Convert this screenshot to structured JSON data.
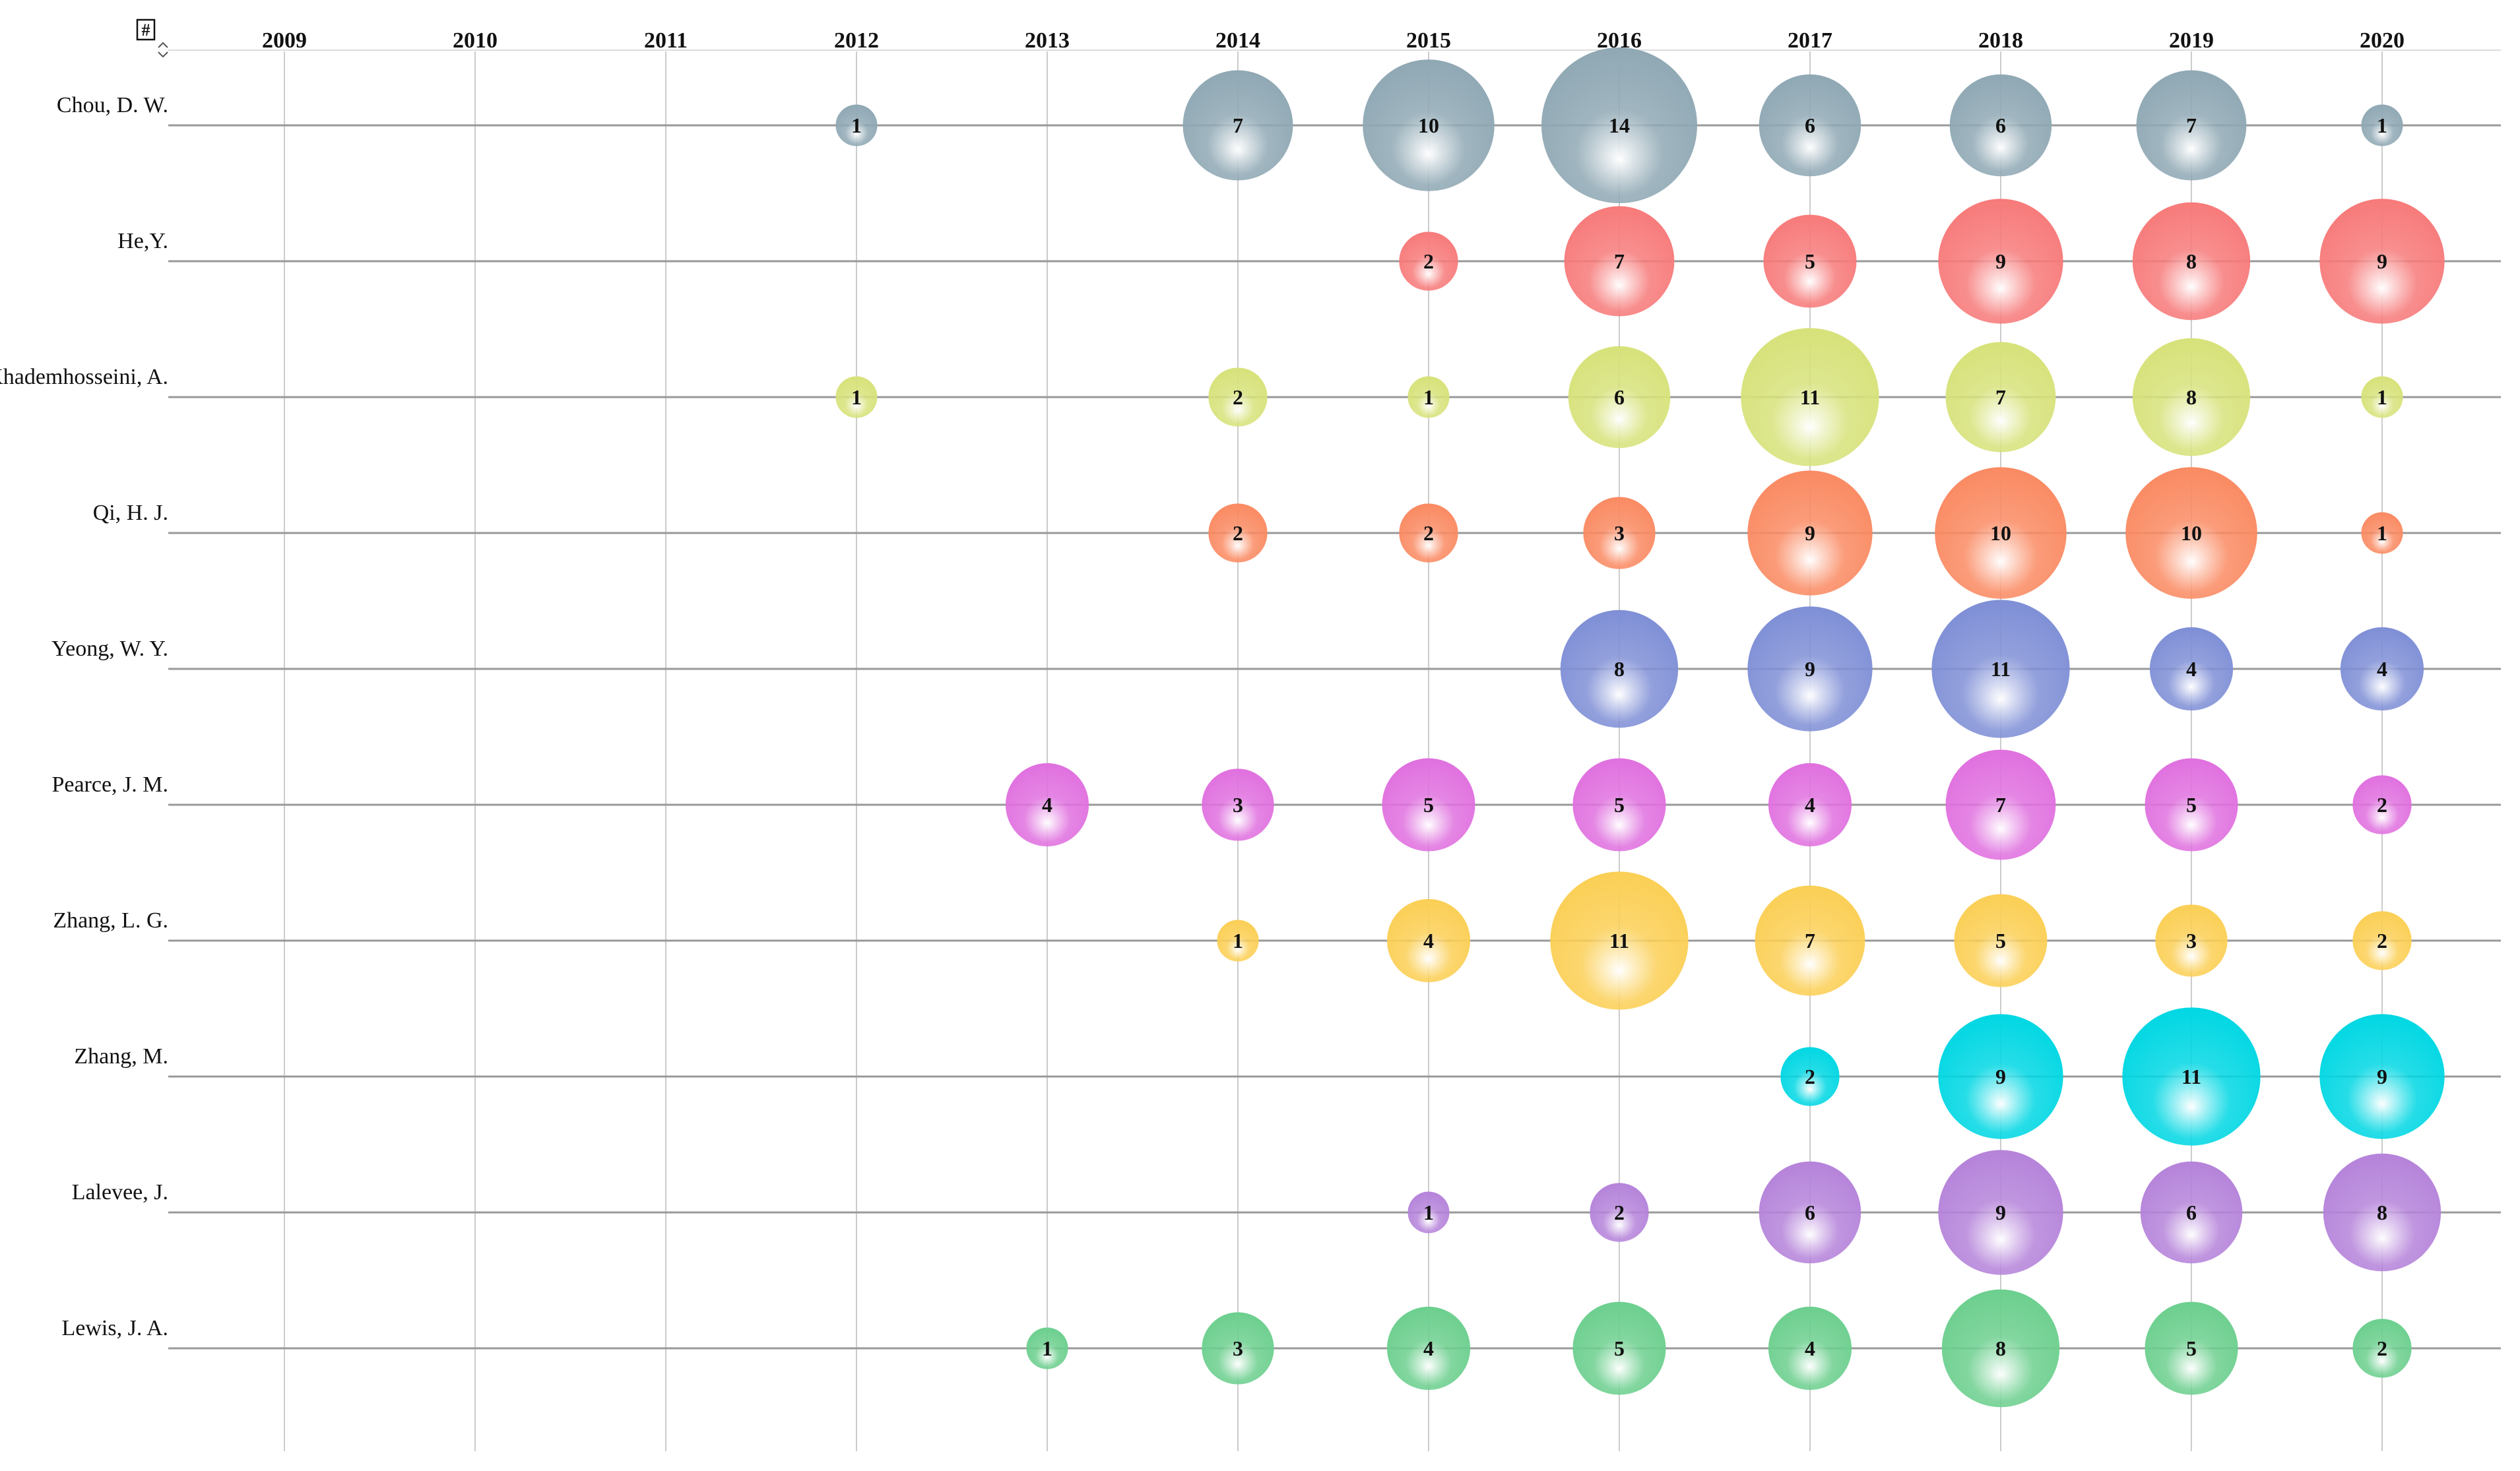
{
  "header": {
    "sort_icon_label": "#"
  },
  "chart_data": {
    "type": "bubble",
    "title": "",
    "x": [
      2009,
      2010,
      2011,
      2012,
      2013,
      2014,
      2015,
      2016,
      2017,
      2018,
      2019,
      2020
    ],
    "x_labels": [
      "2009",
      "2010",
      "2011",
      "2012",
      "2013",
      "2014",
      "2015",
      "2016",
      "2017",
      "2018",
      "2019",
      "2020"
    ],
    "series": [
      {
        "name": "Chou, D. W.",
        "color": "#8fa8b4",
        "values": [
          null,
          null,
          null,
          1,
          null,
          7,
          10,
          14,
          6,
          6,
          7,
          1
        ]
      },
      {
        "name": "He,Y.",
        "color": "#f77a7a",
        "values": [
          null,
          null,
          null,
          null,
          null,
          null,
          2,
          7,
          5,
          9,
          8,
          9
        ]
      },
      {
        "name": "Khademhosseini, A.",
        "color": "#d7e27a",
        "values": [
          null,
          null,
          null,
          1,
          null,
          2,
          1,
          6,
          11,
          7,
          8,
          1
        ]
      },
      {
        "name": "Qi, H. J.",
        "color": "#fa8a62",
        "values": [
          null,
          null,
          null,
          null,
          null,
          2,
          2,
          3,
          9,
          10,
          10,
          1
        ]
      },
      {
        "name": "Yeong, W. Y.",
        "color": "#7f8fd6",
        "values": [
          null,
          null,
          null,
          null,
          null,
          null,
          null,
          8,
          9,
          11,
          4,
          4
        ]
      },
      {
        "name": "Pearce, J. M.",
        "color": "#e070df",
        "values": [
          null,
          null,
          null,
          null,
          4,
          3,
          5,
          5,
          4,
          7,
          5,
          2
        ]
      },
      {
        "name": "Zhang, L. G.",
        "color": "#fbcf55",
        "values": [
          null,
          null,
          null,
          null,
          null,
          1,
          4,
          11,
          7,
          5,
          3,
          2
        ]
      },
      {
        "name": "Zhang, M.",
        "color": "#00d7e3",
        "values": [
          null,
          null,
          null,
          null,
          null,
          null,
          null,
          null,
          2,
          9,
          11,
          9
        ]
      },
      {
        "name": "Lalevee, J.",
        "color": "#b583da",
        "values": [
          null,
          null,
          null,
          null,
          null,
          null,
          1,
          2,
          6,
          9,
          6,
          8
        ]
      },
      {
        "name": "Lewis, J. A.",
        "color": "#6ccf8e",
        "values": [
          null,
          null,
          null,
          null,
          1,
          3,
          4,
          5,
          4,
          8,
          5,
          2
        ]
      }
    ],
    "size_max_value": 14
  }
}
